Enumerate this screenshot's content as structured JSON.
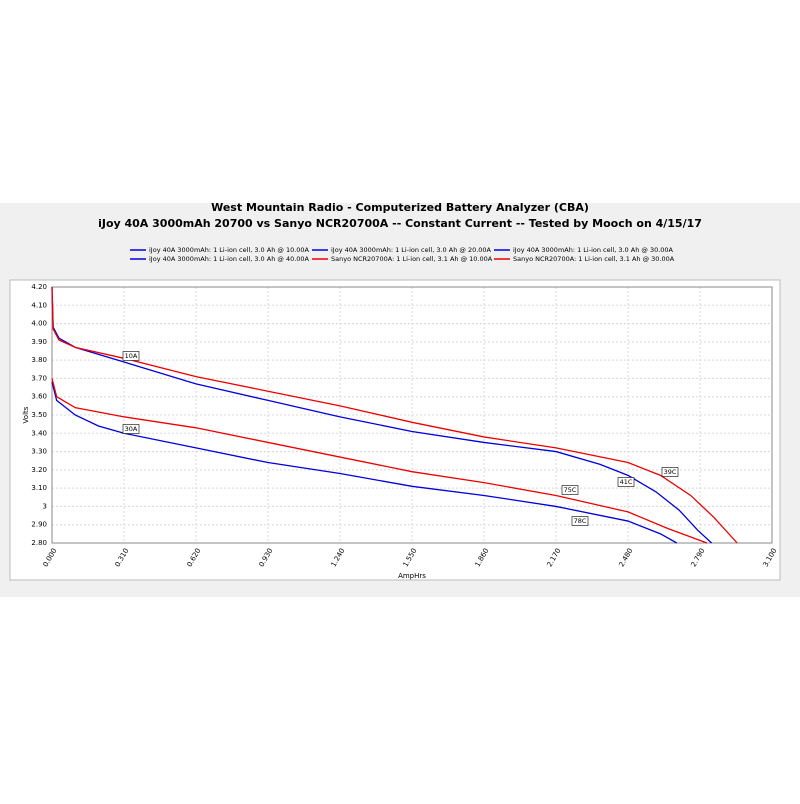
{
  "chart_data": {
    "type": "line",
    "title": "West Mountain Radio - Computerized Battery Analyzer (CBA)",
    "subtitle": "iJoy 40A 3000mAh 20700 vs Sanyo NCR20700A -- Constant Current -- Tested by Mooch on 4/15/17",
    "x_label": "AmpHrs",
    "y_label": "Volts",
    "xlim": [
      0,
      3.1
    ],
    "ylim": [
      2.8,
      4.2
    ],
    "grid": true,
    "xticks": [
      {
        "value": 0,
        "label": "0.000"
      },
      {
        "value": 0.31,
        "label": "0.310"
      },
      {
        "value": 0.62,
        "label": "0.620"
      },
      {
        "value": 0.93,
        "label": "0.930"
      },
      {
        "value": 1.24,
        "label": "1.240"
      },
      {
        "value": 1.55,
        "label": "1.550"
      },
      {
        "value": 1.86,
        "label": "1.860"
      },
      {
        "value": 2.17,
        "label": "2.170"
      },
      {
        "value": 2.48,
        "label": "2.480"
      },
      {
        "value": 2.79,
        "label": "2.790"
      },
      {
        "value": 3.1,
        "label": "3.100"
      }
    ],
    "yticks": [
      {
        "value": 2.8,
        "label": "2.80"
      },
      {
        "value": 2.9,
        "label": "2.90"
      },
      3,
      {
        "value": 3.1,
        "label": "3.10"
      },
      {
        "value": 3.2,
        "label": "3.20"
      },
      {
        "value": 3.3,
        "label": "3.30"
      },
      {
        "value": 3.4,
        "label": "3.40"
      },
      {
        "value": 3.5,
        "label": "3.50"
      },
      {
        "value": 3.6,
        "label": "3.60"
      },
      {
        "value": 3.7,
        "label": "3.70"
      },
      {
        "value": 3.8,
        "label": "3.80"
      },
      {
        "value": 3.9,
        "label": "3.90"
      },
      {
        "value": 4,
        "label": "4.00"
      },
      {
        "value": 4.1,
        "label": "4.10"
      },
      {
        "value": 4.2,
        "label": "4.20"
      }
    ],
    "series": [
      {
        "name": "iJoy 40A 3000mAh: 1 Li-ion cell, 3.0 Ah @ 10.00A",
        "color": "#0000dd",
        "x": [
          0,
          0.005,
          0.03,
          0.1,
          0.31,
          0.62,
          0.93,
          1.24,
          1.55,
          1.86,
          2.17,
          2.36,
          2.48,
          2.6,
          2.7,
          2.78,
          2.84
        ],
        "values": [
          4.2,
          3.98,
          3.92,
          3.87,
          3.79,
          3.67,
          3.58,
          3.49,
          3.41,
          3.35,
          3.3,
          3.23,
          3.17,
          3.08,
          2.98,
          2.87,
          2.8
        ]
      },
      {
        "name": "iJoy 40A 3000mAh: 1 Li-ion cell, 3.0 Ah @ 20.00A",
        "color": "#0000dd",
        "x": [],
        "values": []
      },
      {
        "name": "iJoy 40A 3000mAh: 1 Li-ion cell, 3.0 Ah @ 30.00A",
        "color": "#0000dd",
        "x": [
          0,
          0.02,
          0.1,
          0.2,
          0.31,
          0.62,
          0.93,
          1.24,
          1.55,
          1.86,
          2.17,
          2.48,
          2.62,
          2.69
        ],
        "values": [
          3.68,
          3.58,
          3.5,
          3.44,
          3.4,
          3.32,
          3.24,
          3.18,
          3.11,
          3.06,
          3,
          2.92,
          2.85,
          2.8
        ]
      },
      {
        "name": "iJoy 40A 3000mAh: 1 Li-ion cell, 3.0 Ah @ 40.00A",
        "color": "#0000dd",
        "x": [],
        "values": []
      },
      {
        "name": "Sanyo NCR20700A: 1 Li-ion cell, 3.1 Ah @ 10.00A",
        "color": "#ee0000",
        "x": [
          0,
          0.005,
          0.03,
          0.1,
          0.31,
          0.62,
          0.93,
          1.24,
          1.55,
          1.86,
          2.17,
          2.48,
          2.62,
          2.75,
          2.85,
          2.95
        ],
        "values": [
          4.2,
          3.97,
          3.91,
          3.87,
          3.81,
          3.71,
          3.63,
          3.55,
          3.46,
          3.38,
          3.32,
          3.24,
          3.17,
          3.06,
          2.94,
          2.8
        ]
      },
      {
        "name": "Sanyo NCR20700A: 1 Li-ion cell, 3.1 Ah @ 30.00A",
        "color": "#ee0000",
        "x": [
          0,
          0.02,
          0.1,
          0.31,
          0.62,
          0.93,
          1.24,
          1.55,
          1.86,
          2.17,
          2.48,
          2.65,
          2.82
        ],
        "values": [
          3.7,
          3.6,
          3.54,
          3.49,
          3.43,
          3.35,
          3.27,
          3.19,
          3.13,
          3.06,
          2.97,
          2.88,
          2.8
        ]
      }
    ],
    "annotations": [
      "10A",
      "30A",
      "39C",
      "41C",
      "75C",
      "78C"
    ]
  }
}
